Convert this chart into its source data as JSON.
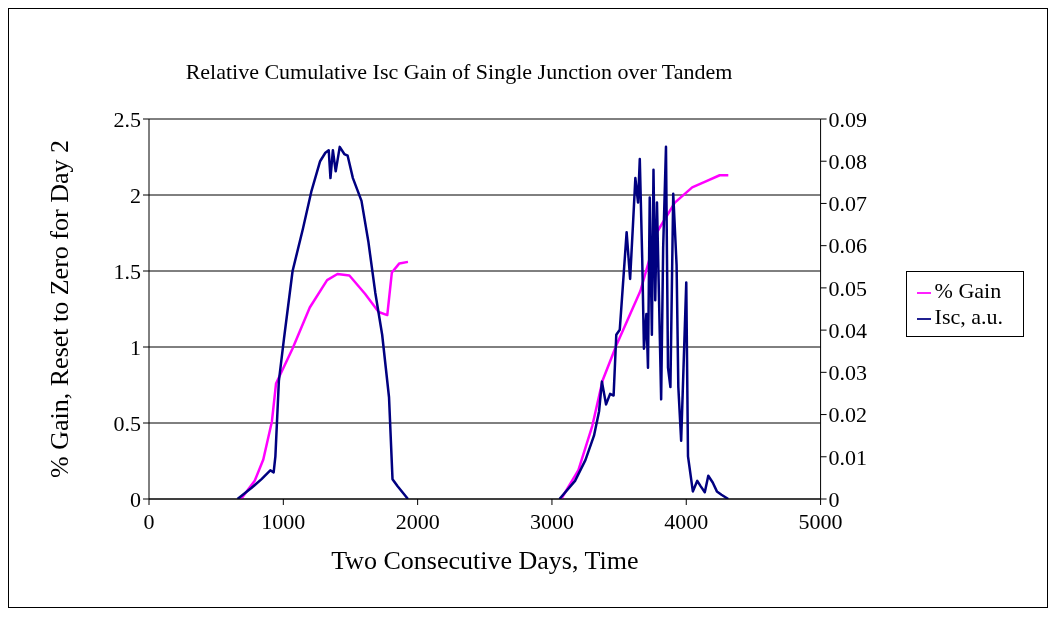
{
  "chart_data": {
    "type": "line",
    "title": "Relative Cumulative Isc Gain of Single Junction over Tandem",
    "xlabel": "Two Consecutive Days, Time",
    "ylabel": "% Gain, Reset to Zero for Day 2",
    "xlim": [
      0,
      5000
    ],
    "xticks": [
      0,
      1000,
      2000,
      3000,
      4000,
      5000
    ],
    "ylim": [
      0,
      2.5
    ],
    "yticks": [
      0,
      0.5,
      1,
      1.5,
      2,
      2.5
    ],
    "y2lim": [
      0,
      0.09
    ],
    "y2ticks": [
      0,
      0.01,
      0.02,
      0.03,
      0.04,
      0.05,
      0.06,
      0.07,
      0.08,
      0.09
    ],
    "grid": "y",
    "legend": "right",
    "marker": "none",
    "line_style": "solid",
    "series": [
      {
        "name": "% Gain",
        "color": "#ff00ff",
        "x": [
          685,
          787,
          851,
          915,
          946,
          1069,
          1197,
          1326,
          1403,
          1492,
          1608,
          1710,
          1774,
          1808,
          1864,
          1928,
          2500,
          3069,
          3197,
          3300,
          3377,
          3479,
          3659,
          3785,
          3915,
          4044,
          4146,
          4249,
          4313
        ],
        "values": [
          0,
          0.12,
          0.26,
          0.51,
          0.76,
          0.99,
          1.26,
          1.44,
          1.48,
          1.47,
          1.35,
          1.23,
          1.21,
          1.49,
          1.55,
          1.56,
          null,
          0,
          0.19,
          0.48,
          0.78,
          1.01,
          1.37,
          1.76,
          1.95,
          2.05,
          2.09,
          2.13,
          2.13
        ]
      },
      {
        "name": "Isc, a.u.",
        "color": "#000080",
        "axis": "y2",
        "x": [
          659,
          762,
          838,
          903,
          928,
          941,
          967,
          1005,
          1069,
          1146,
          1210,
          1274,
          1313,
          1338,
          1351,
          1369,
          1390,
          1420,
          1454,
          1479,
          1518,
          1582,
          1633,
          1685,
          1736,
          1787,
          1813,
          1851,
          1928,
          2500,
          3056,
          3172,
          3249,
          3313,
          3351,
          3372,
          3403,
          3433,
          3459,
          3479,
          3505,
          3526,
          3556,
          3582,
          3603,
          3621,
          3641,
          3654,
          3672,
          3685,
          3703,
          3715,
          3728,
          3744,
          3756,
          3769,
          3782,
          3813,
          3828,
          3849,
          3864,
          3882,
          3903,
          3928,
          3941,
          3962,
          4000,
          4013,
          4049,
          4082,
          4108,
          4138,
          4164,
          4197,
          4228,
          4262,
          4313
        ],
        "values": [
          0,
          0.0026,
          0.0047,
          0.0068,
          0.0063,
          0.0101,
          0.028,
          0.038,
          0.054,
          0.064,
          0.073,
          0.08,
          0.082,
          0.0826,
          0.076,
          0.0826,
          0.0776,
          0.0834,
          0.0817,
          0.0813,
          0.076,
          0.0706,
          0.061,
          0.0488,
          0.0389,
          0.0241,
          0.0047,
          0.003,
          0,
          null,
          0,
          0.0043,
          0.0092,
          0.015,
          0.0208,
          0.0278,
          0.0224,
          0.0249,
          0.0245,
          0.0389,
          0.0401,
          0.0496,
          0.0632,
          0.0521,
          0.0648,
          0.076,
          0.0702,
          0.0805,
          0.057,
          0.0356,
          0.0438,
          0.0311,
          0.0714,
          0.0389,
          0.078,
          0.0471,
          0.0702,
          0.0236,
          0.0595,
          0.0834,
          0.0311,
          0.0265,
          0.0723,
          0.0554,
          0.0265,
          0.0138,
          0.0513,
          0.0101,
          0.0018,
          0.0043,
          0.003,
          0.0016,
          0.0055,
          0.0039,
          0.0018,
          0.001,
          0
        ]
      }
    ]
  }
}
